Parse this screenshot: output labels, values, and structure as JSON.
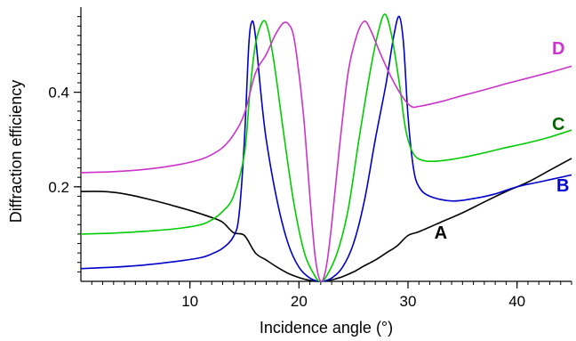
{
  "chart_data": {
    "type": "line",
    "title": "",
    "xlabel": "Incidence angle (°)",
    "ylabel": "Diffraction efficiency",
    "xlim": [
      0,
      45
    ],
    "ylim": [
      0,
      0.58
    ],
    "x_ticks": [
      10,
      20,
      30,
      40
    ],
    "x_tick_labels": [
      "10",
      "20",
      "30",
      "40"
    ],
    "y_ticks": [
      0.2,
      0.4
    ],
    "y_tick_labels": [
      "0.2",
      "0.4"
    ],
    "grid": false,
    "legend": "inline labels at right",
    "series": [
      {
        "name": "A",
        "color": "#000000",
        "points": [
          [
            0,
            0.19
          ],
          [
            2,
            0.19
          ],
          [
            4,
            0.185
          ],
          [
            6,
            0.175
          ],
          [
            8,
            0.163
          ],
          [
            10,
            0.15
          ],
          [
            12,
            0.135
          ],
          [
            13,
            0.125
          ],
          [
            14,
            0.103
          ],
          [
            15,
            0.097
          ],
          [
            16,
            0.06
          ],
          [
            17,
            0.045
          ],
          [
            18,
            0.03
          ],
          [
            19,
            0.017
          ],
          [
            20,
            0.008
          ],
          [
            21,
            0.002
          ],
          [
            22,
            0
          ],
          [
            23,
            0.003
          ],
          [
            24,
            0.01
          ],
          [
            25,
            0.02
          ],
          [
            26,
            0.033
          ],
          [
            27,
            0.045
          ],
          [
            28,
            0.06
          ],
          [
            29,
            0.075
          ],
          [
            30,
            0.097
          ],
          [
            31,
            0.105
          ],
          [
            33,
            0.125
          ],
          [
            35,
            0.145
          ],
          [
            37,
            0.168
          ],
          [
            39,
            0.19
          ],
          [
            41,
            0.21
          ],
          [
            43,
            0.235
          ],
          [
            45,
            0.26
          ]
        ]
      },
      {
        "name": "B",
        "color": "#0000cc",
        "points": [
          [
            0,
            0.027
          ],
          [
            3,
            0.03
          ],
          [
            6,
            0.035
          ],
          [
            9,
            0.043
          ],
          [
            11,
            0.05
          ],
          [
            12,
            0.058
          ],
          [
            13,
            0.07
          ],
          [
            14,
            0.095
          ],
          [
            14.5,
            0.14
          ],
          [
            15,
            0.3
          ],
          [
            15.4,
            0.5
          ],
          [
            15.7,
            0.55
          ],
          [
            16,
            0.52
          ],
          [
            16.5,
            0.4
          ],
          [
            17,
            0.3
          ],
          [
            18,
            0.17
          ],
          [
            19,
            0.08
          ],
          [
            20,
            0.03
          ],
          [
            21,
            0.007
          ],
          [
            22,
            0
          ],
          [
            23,
            0.007
          ],
          [
            24,
            0.03
          ],
          [
            25,
            0.08
          ],
          [
            26,
            0.17
          ],
          [
            27,
            0.3
          ],
          [
            28,
            0.42
          ],
          [
            28.7,
            0.52
          ],
          [
            29.2,
            0.56
          ],
          [
            29.6,
            0.5
          ],
          [
            30,
            0.35
          ],
          [
            30.5,
            0.24
          ],
          [
            31,
            0.2
          ],
          [
            32,
            0.18
          ],
          [
            34,
            0.17
          ],
          [
            36,
            0.175
          ],
          [
            38,
            0.185
          ],
          [
            40,
            0.2
          ],
          [
            42,
            0.21
          ],
          [
            45,
            0.225
          ]
        ]
      },
      {
        "name": "C",
        "color": "#00cc00",
        "points": [
          [
            0,
            0.1
          ],
          [
            3,
            0.102
          ],
          [
            6,
            0.106
          ],
          [
            9,
            0.112
          ],
          [
            11,
            0.12
          ],
          [
            12,
            0.13
          ],
          [
            13,
            0.148
          ],
          [
            14,
            0.18
          ],
          [
            15,
            0.27
          ],
          [
            15.5,
            0.4
          ],
          [
            16,
            0.5
          ],
          [
            16.7,
            0.55
          ],
          [
            17.2,
            0.53
          ],
          [
            17.8,
            0.45
          ],
          [
            18.5,
            0.33
          ],
          [
            19.5,
            0.17
          ],
          [
            20.5,
            0.06
          ],
          [
            21.5,
            0.01
          ],
          [
            22,
            0
          ],
          [
            22.5,
            0.01
          ],
          [
            23.5,
            0.06
          ],
          [
            24.5,
            0.15
          ],
          [
            25.5,
            0.3
          ],
          [
            26.5,
            0.44
          ],
          [
            27.3,
            0.53
          ],
          [
            27.9,
            0.565
          ],
          [
            28.5,
            0.52
          ],
          [
            29.2,
            0.42
          ],
          [
            29.8,
            0.32
          ],
          [
            30.5,
            0.27
          ],
          [
            31.5,
            0.255
          ],
          [
            33,
            0.255
          ],
          [
            35,
            0.262
          ],
          [
            37,
            0.272
          ],
          [
            39,
            0.283
          ],
          [
            41,
            0.293
          ],
          [
            43,
            0.305
          ],
          [
            45,
            0.32
          ]
        ]
      },
      {
        "name": "D",
        "color": "#cc33cc",
        "points": [
          [
            0,
            0.23
          ],
          [
            3,
            0.232
          ],
          [
            6,
            0.237
          ],
          [
            9,
            0.247
          ],
          [
            11,
            0.258
          ],
          [
            12,
            0.268
          ],
          [
            13,
            0.283
          ],
          [
            14,
            0.31
          ],
          [
            15,
            0.355
          ],
          [
            16,
            0.44
          ],
          [
            17,
            0.48
          ],
          [
            17.8,
            0.52
          ],
          [
            18.5,
            0.545
          ],
          [
            19,
            0.545
          ],
          [
            19.5,
            0.52
          ],
          [
            20,
            0.44
          ],
          [
            20.5,
            0.33
          ],
          [
            21,
            0.18
          ],
          [
            21.5,
            0.05
          ],
          [
            22,
            0
          ],
          [
            22.5,
            0.03
          ],
          [
            23,
            0.12
          ],
          [
            23.7,
            0.28
          ],
          [
            24.5,
            0.44
          ],
          [
            25.3,
            0.52
          ],
          [
            26,
            0.55
          ],
          [
            26.6,
            0.53
          ],
          [
            27.5,
            0.48
          ],
          [
            28.5,
            0.43
          ],
          [
            29.5,
            0.39
          ],
          [
            30.3,
            0.37
          ],
          [
            31,
            0.37
          ],
          [
            33,
            0.38
          ],
          [
            35,
            0.393
          ],
          [
            37,
            0.405
          ],
          [
            39,
            0.418
          ],
          [
            41,
            0.43
          ],
          [
            43,
            0.442
          ],
          [
            45,
            0.455
          ]
        ]
      }
    ],
    "labels": [
      {
        "text": "A",
        "color": "#000000",
        "x": 33,
        "y": 0.09
      },
      {
        "text": "B",
        "color": "#0000cc",
        "x": 44.2,
        "y": 0.19
      },
      {
        "text": "C",
        "color": "#006600",
        "x": 43.8,
        "y": 0.32
      },
      {
        "text": "D",
        "color": "#cc33cc",
        "x": 43.8,
        "y": 0.48
      }
    ]
  }
}
